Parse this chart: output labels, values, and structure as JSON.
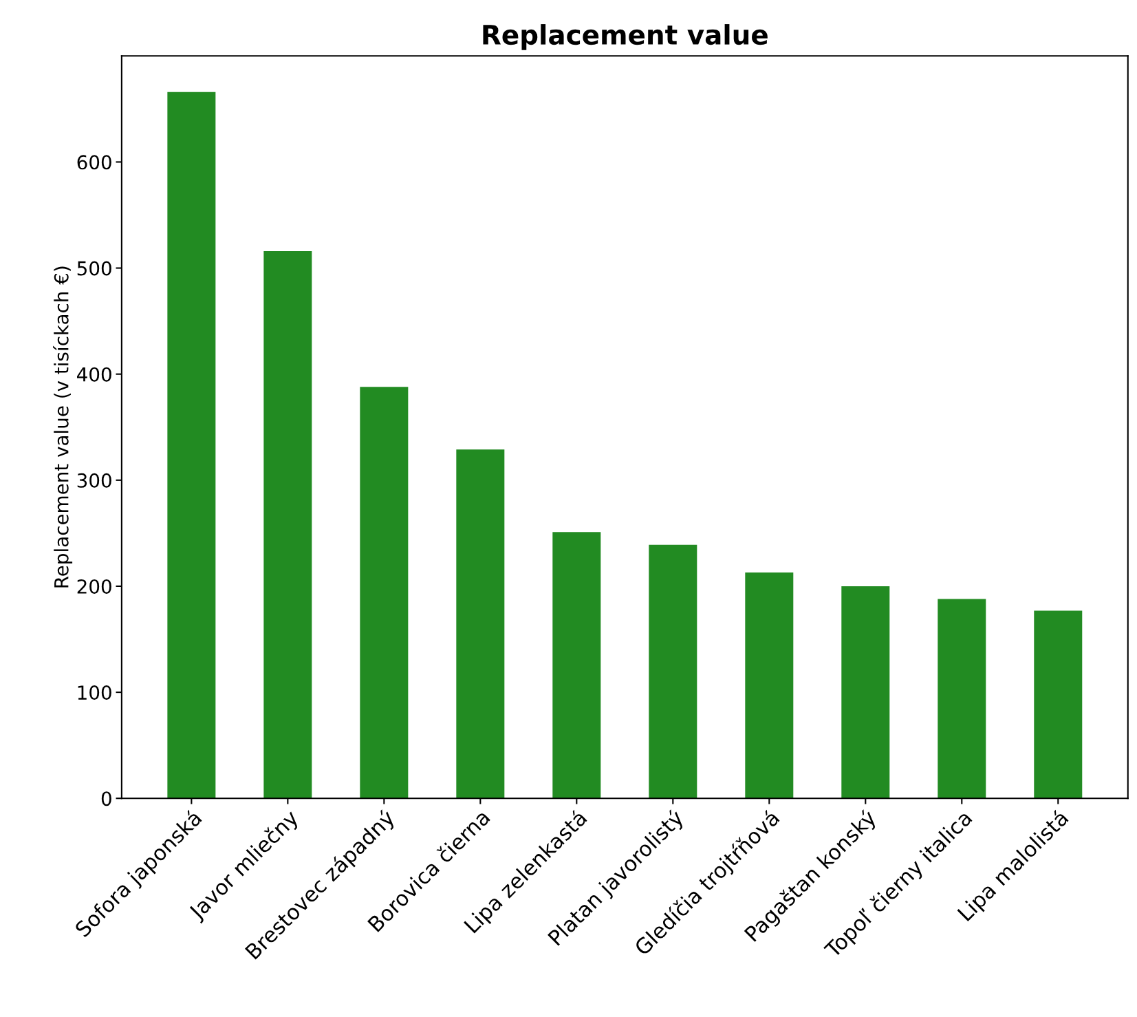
{
  "chart_data": {
    "type": "bar",
    "title": "Replacement value",
    "ylabel": "Replacement value (v tisíckach €)",
    "categories": [
      "Sofora japonská",
      "Javor mliečny",
      "Brestovec západný",
      "Borovica čierna",
      "Lipa zelenkastá",
      "Platan javorolistý",
      "Gledíčia trojtŕňová",
      "Pagaštan konský",
      "Topoľ čierny italica",
      "Lipa malolistá"
    ],
    "values": [
      666,
      516,
      388,
      329,
      251,
      239,
      213,
      200,
      188,
      177
    ],
    "color": "#228b22",
    "ylim": [
      0,
      700
    ],
    "yticks": [
      0,
      100,
      200,
      300,
      400,
      500,
      600
    ],
    "grid": false
  }
}
